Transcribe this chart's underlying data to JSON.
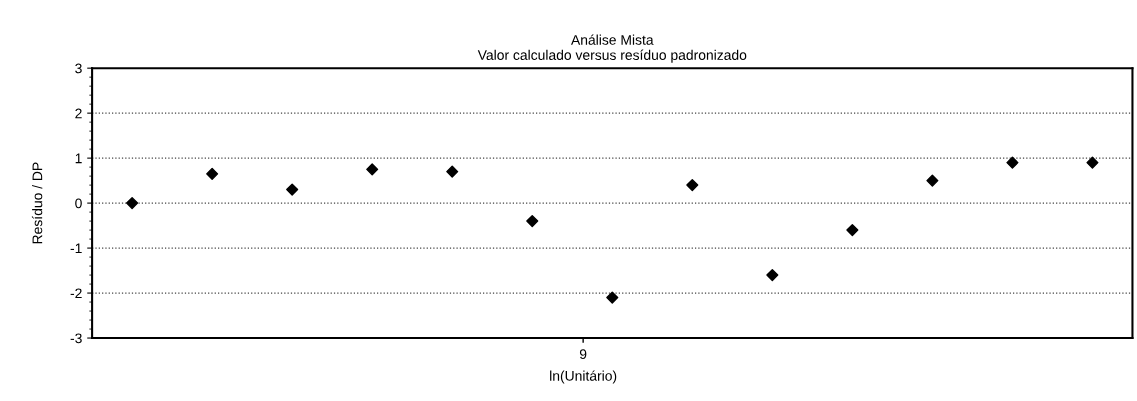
{
  "chart_data": {
    "type": "scatter",
    "title": "Análise Mista",
    "subtitle": "Valor calculado versus resíduo padronizado",
    "xlabel": "ln(Unitário)",
    "ylabel": "Resíduo / DP",
    "categories": [
      null,
      null,
      null,
      null,
      null,
      null,
      null,
      null,
      null,
      null,
      null,
      null,
      null
    ],
    "series": [
      {
        "color": "#000000",
        "values": [
          0.0,
          0.65,
          0.3,
          0.75,
          0.7,
          -0.4,
          -2.1,
          0.4,
          -1.6,
          -0.6,
          0.5,
          0.9,
          0.9
        ]
      }
    ],
    "annotations": [
      "9"
    ],
    "ylim": [
      -3,
      3
    ],
    "yticks": [
      -3,
      -2,
      -1,
      0,
      1,
      2,
      3
    ],
    "grid": "y",
    "marker": "diamond",
    "legend": false
  }
}
